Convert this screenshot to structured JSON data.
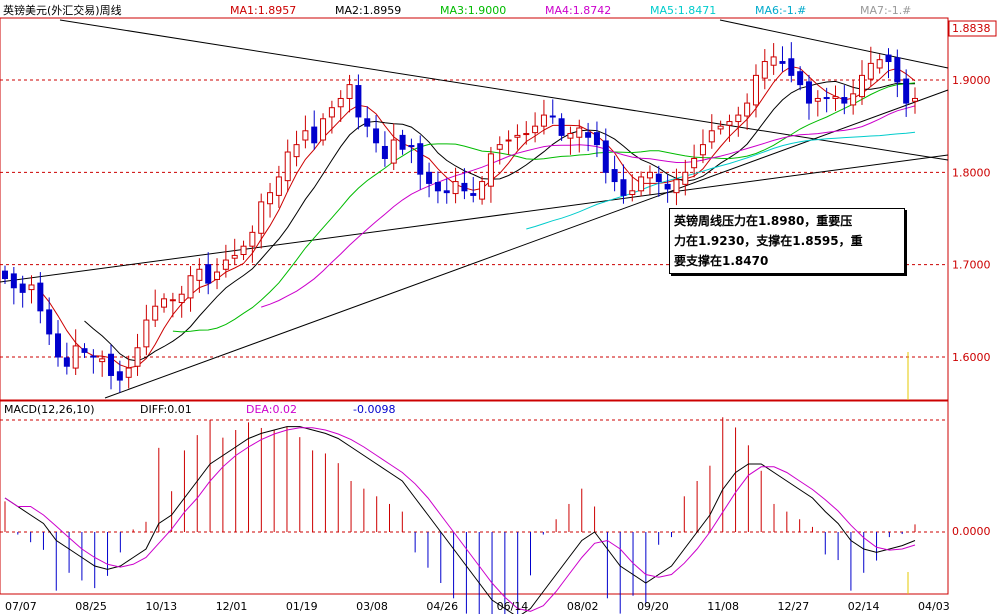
{
  "header": {
    "title": "英镑美元(外汇交易)周线",
    "ma": [
      {
        "label": "MA1:1.8957",
        "color": "#cc0000"
      },
      {
        "label": "MA2:1.8959",
        "color": "#000000"
      },
      {
        "label": "MA3:1.9000",
        "color": "#00bb00"
      },
      {
        "label": "MA4:1.8742",
        "color": "#cc00cc"
      },
      {
        "label": "MA5:1.8471",
        "color": "#00cccc"
      },
      {
        "label": "MA6:-1.#",
        "color": "#00aacc"
      },
      {
        "label": "MA7:-1.#",
        "color": "#999999"
      }
    ]
  },
  "macd_header": {
    "name": "MACD(12,26,10)",
    "diff": "DIFF:0.01",
    "dea": "DEA:0.02",
    "macd": "-0.0098",
    "diff_color": "#000000",
    "dea_color": "#cc00cc",
    "macd_color": "#0000cc"
  },
  "annotation": {
    "line1": "英镑周线压力在1.8980，重要压",
    "line2": "力在1.9230，支撑在1.8595，重",
    "line3": "要支撑在1.8470"
  },
  "price_axis": {
    "top_label": "1.8838",
    "labels": [
      "1.9000",
      "1.8000",
      "1.7000",
      "1.6000"
    ],
    "macd_label": "0.0000"
  },
  "x_axis": {
    "labels": [
      "07/07",
      "08/25",
      "10/13",
      "12/01",
      "01/19",
      "03/08",
      "04/26",
      "06/14",
      "08/02",
      "09/20",
      "11/08",
      "12/27",
      "02/14",
      "04/03"
    ]
  },
  "colors": {
    "up": "#cc0000",
    "down": "#0000cc",
    "grid": "#cc0000",
    "ma1": "#cc0000",
    "ma2": "#000000",
    "ma3": "#00bb00",
    "ma4": "#cc00cc",
    "ma5": "#00cccc"
  },
  "chart_data": {
    "type": "candlestick",
    "title": "英镑美元(外汇交易)周线",
    "y_range": [
      1.545,
      1.945
    ],
    "y_ticks": [
      1.6,
      1.7,
      1.8,
      1.9
    ],
    "macd_range": [
      -0.065,
      0.115
    ],
    "x_labels": [
      "07/07",
      "08/25",
      "10/13",
      "12/01",
      "01/19",
      "03/08",
      "04/26",
      "06/14",
      "08/02",
      "09/20",
      "11/08",
      "12/27",
      "02/14",
      "04/03"
    ],
    "closes": [
      1.685,
      1.675,
      1.67,
      1.678,
      1.65,
      1.625,
      1.6,
      1.59,
      1.612,
      1.605,
      1.6,
      1.598,
      1.58,
      1.575,
      1.588,
      1.61,
      1.64,
      1.655,
      1.663,
      1.662,
      1.668,
      1.688,
      1.695,
      1.68,
      1.692,
      1.705,
      1.71,
      1.72,
      1.735,
      1.768,
      1.778,
      1.795,
      1.822,
      1.83,
      1.845,
      1.832,
      1.858,
      1.87,
      1.88,
      1.895,
      1.86,
      1.85,
      1.832,
      1.815,
      1.835,
      1.825,
      1.828,
      1.798,
      1.788,
      1.78,
      1.778,
      1.79,
      1.78,
      1.775,
      1.79,
      1.82,
      1.83,
      1.835,
      1.84,
      1.842,
      1.85,
      1.862,
      1.86,
      1.84,
      1.842,
      1.848,
      1.838,
      1.83,
      1.8,
      1.79,
      1.775,
      1.78,
      1.795,
      1.8,
      1.79,
      1.782,
      1.792,
      1.8,
      1.815,
      1.83,
      1.845,
      1.85,
      1.855,
      1.862,
      1.875,
      1.905,
      1.92,
      1.925,
      1.918,
      1.905,
      1.895,
      1.875,
      1.88,
      1.88,
      1.882,
      1.875,
      1.885,
      1.905,
      1.918,
      1.922,
      1.92,
      1.898,
      1.875,
      1.88
    ],
    "volume_macd": [
      0.02,
      0.015,
      0.01,
      0.005,
      -0.005,
      -0.01,
      -0.015,
      -0.02,
      -0.022,
      -0.02,
      -0.015,
      -0.01,
      0.005,
      0.01,
      0.02,
      0.03,
      0.04,
      0.045,
      0.05,
      0.055,
      0.058,
      0.06,
      0.062,
      0.062,
      0.06,
      0.058,
      0.055,
      0.05,
      0.045,
      0.04,
      0.035,
      0.03,
      0.02,
      0.01,
      0.0,
      -0.01,
      -0.02,
      -0.03,
      -0.04,
      -0.045,
      -0.05,
      -0.045,
      -0.035,
      -0.025,
      -0.015,
      -0.005,
      0.0,
      -0.01,
      -0.02,
      -0.025,
      -0.03,
      -0.025,
      -0.02,
      -0.01,
      0.0,
      0.01,
      0.025,
      0.035,
      0.04,
      0.04,
      0.035,
      0.03,
      0.025,
      0.02,
      0.012,
      0.005,
      -0.005,
      -0.01,
      -0.012,
      -0.01,
      -0.008,
      -0.005
    ]
  }
}
